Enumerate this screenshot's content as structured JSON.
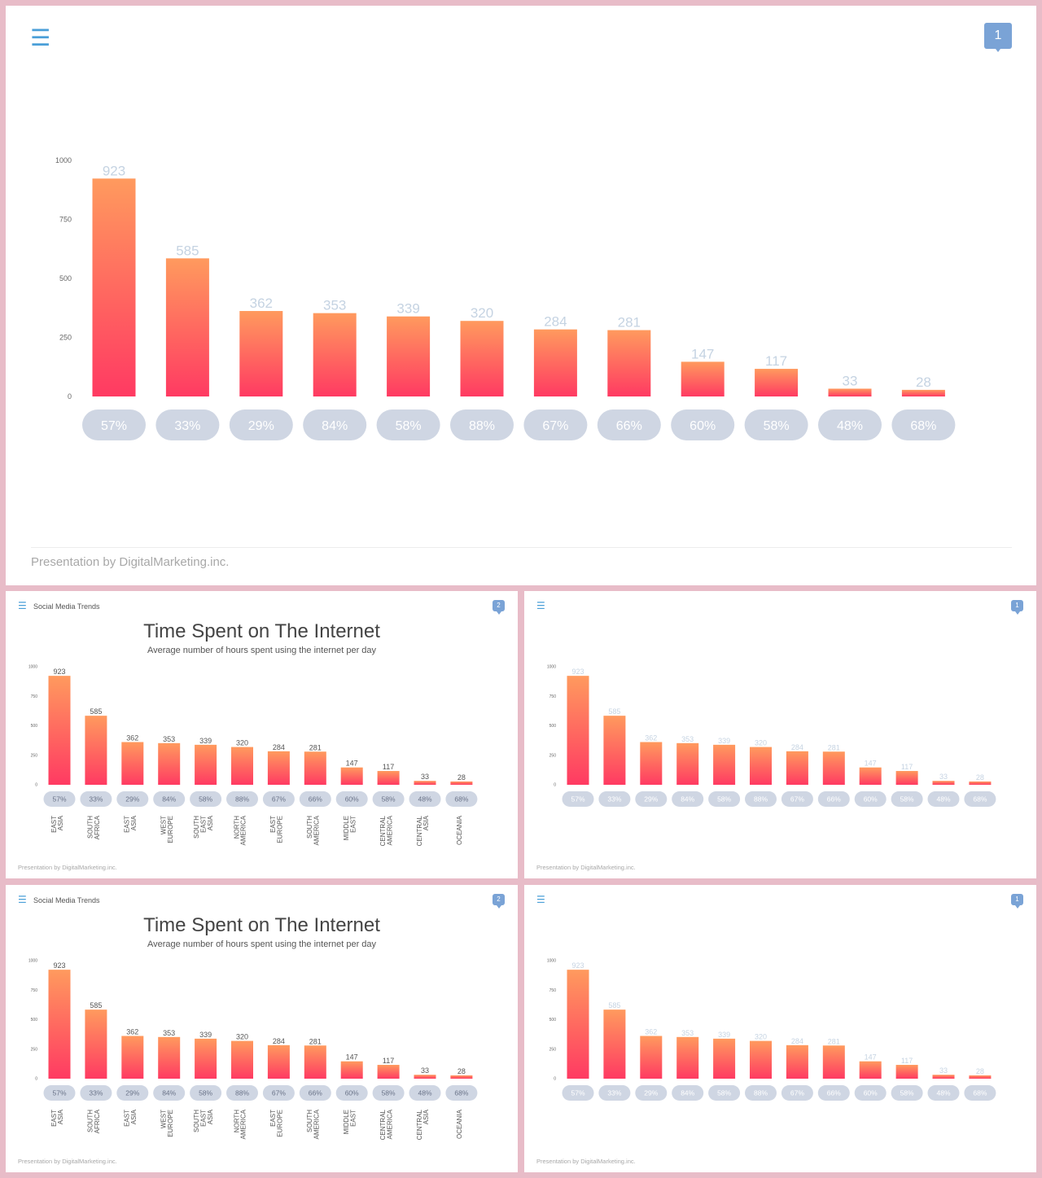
{
  "slides": {
    "big": {
      "badge": "1"
    },
    "s1": {
      "badge": "2",
      "section": "Social Media Trends"
    },
    "s2": {
      "badge": "1"
    },
    "s3": {
      "badge": "2",
      "section": "Social Media Trends"
    },
    "s4": {
      "badge": "1"
    }
  },
  "menu_icon": "hamburger-menu-icon",
  "title": "Time Spent  on The Internet",
  "subtitle": "Average number of hours spent using the internet per day",
  "footer": "Presentation  by DigitalMarketing.inc.",
  "colors": {
    "bar_top": "#ff9a5e",
    "bar_bottom": "#ff3a62",
    "pill": "#cfd6e3",
    "pill_text": "#ffffff",
    "value_light": "#c5d3e2",
    "value_dark": "#555555",
    "menu": "#4a9fd8",
    "badge": "#7aa3d6"
  },
  "chart_data": {
    "type": "bar",
    "categories": [
      "EAST ASIA",
      "SOUTH AFRICA",
      "EAST ASIA",
      "WEST EUROPE",
      "SOUTH EAST ASIA",
      "NORTH AMERICA",
      "EAST EUROPE",
      "SOUTH AMERICA",
      "MIDDLE EAST",
      "CENTRAL AMERICA",
      "CENTRAL ASIA",
      "OCEANIA"
    ],
    "values": [
      923,
      585,
      362,
      353,
      339,
      320,
      284,
      281,
      147,
      117,
      33,
      28
    ],
    "percentages": [
      "57%",
      "33%",
      "29%",
      "84%",
      "58%",
      "88%",
      "67%",
      "66%",
      "60%",
      "58%",
      "48%",
      "68%"
    ],
    "yticks": [
      0,
      250,
      500,
      750,
      1000
    ],
    "ylim": [
      0,
      1000
    ],
    "title": "Time Spent  on The Internet",
    "subtitle": "Average number of hours spent using the internet per day",
    "legend": "none",
    "grid": false
  }
}
